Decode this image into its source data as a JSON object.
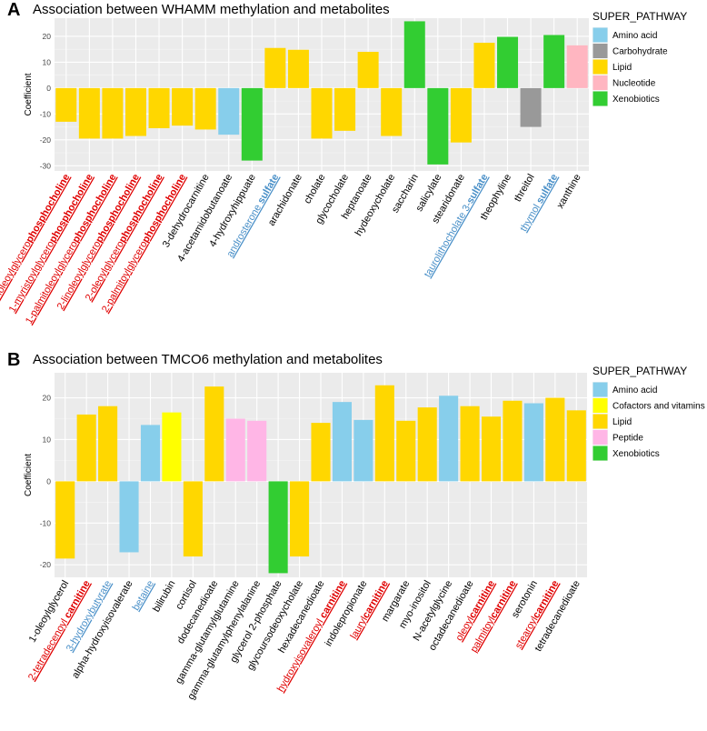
{
  "colors": {
    "Amino acid": "#87CEEB",
    "Carbohydrate": "#999999",
    "Lipid": "#FFD700",
    "Nucleotide": "#FFB6C1",
    "Xenobiotics": "#32CD32",
    "Cofactors and vitamins": "#FFFF00",
    "Peptide": "#FFB6E6",
    "panel_bg": "#EBEBEB",
    "grid": "#ffffff",
    "label_red": "#E00000",
    "label_blue": "#4A90C8",
    "label_black": "#000000"
  },
  "chart_data": [
    {
      "id": "A",
      "type": "bar",
      "panel_letter": "A",
      "title": "Association between WHAMM methylation and metabolites",
      "ylabel": "Coefficient",
      "xlabel": "",
      "ylim": [
        -32,
        27
      ],
      "yticks": [
        -30,
        -20,
        -10,
        0,
        10,
        20
      ],
      "legend_title": "SUPER_PATHWAY",
      "legend": [
        "Amino acid",
        "Carbohydrate",
        "Lipid",
        "Nucleotide",
        "Xenobiotics"
      ],
      "categories": [
        {
          "label": "1-linoleoylglycerophosphocholine",
          "parts": [
            [
              "1-linoleoylglycero",
              "normal"
            ],
            [
              "phosphocholine",
              "bold"
            ]
          ],
          "color": "red",
          "value": -13,
          "pathway": "Lipid"
        },
        {
          "label": "1-myristoylglycerophosphocholine",
          "parts": [
            [
              "1-myristoylglycero",
              "normal"
            ],
            [
              "phosphocholine",
              "bold"
            ]
          ],
          "color": "red",
          "value": -19.5,
          "pathway": "Lipid"
        },
        {
          "label": "1-palmitoleoylglycerophosphocholine",
          "parts": [
            [
              "1-palmitoleoylglycero",
              "normal"
            ],
            [
              "phosphocholine",
              "bold"
            ]
          ],
          "color": "red",
          "value": -19.5,
          "pathway": "Lipid"
        },
        {
          "label": "2-linoleoylglycerophosphocholine",
          "parts": [
            [
              "2-linoleoylglycero",
              "normal"
            ],
            [
              "phosphocholine",
              "bold"
            ]
          ],
          "color": "red",
          "value": -18.5,
          "pathway": "Lipid"
        },
        {
          "label": "2-oleoylglycerophosphocholine",
          "parts": [
            [
              "2-oleoylglycero",
              "normal"
            ],
            [
              "phosphocholine",
              "bold"
            ]
          ],
          "color": "red",
          "value": -15.5,
          "pathway": "Lipid"
        },
        {
          "label": "2-palmitoylglycerophosphocholine",
          "parts": [
            [
              "2-palmitoylglycero",
              "normal"
            ],
            [
              "phosphocholine",
              "bold"
            ]
          ],
          "color": "red",
          "value": -14.5,
          "pathway": "Lipid"
        },
        {
          "label": "3-dehydrocarnitine",
          "parts": [
            [
              "3-dehydrocarnitine",
              "normal"
            ]
          ],
          "color": "black",
          "value": -16,
          "pathway": "Lipid"
        },
        {
          "label": "4-acetamidobutanoate",
          "parts": [
            [
              "4-acetamidobutanoate",
              "normal"
            ]
          ],
          "color": "black",
          "value": -18,
          "pathway": "Amino acid"
        },
        {
          "label": "4-hydroxyhippuate",
          "parts": [
            [
              "4-hydroxyhippuate",
              "normal"
            ]
          ],
          "color": "black",
          "value": -28,
          "pathway": "Xenobiotics"
        },
        {
          "label": "androsterone sulfate",
          "parts": [
            [
              "androsterone ",
              "normal"
            ],
            [
              "sulfate",
              "bold"
            ]
          ],
          "color": "blue",
          "value": 15.5,
          "pathway": "Lipid"
        },
        {
          "label": "arachidonate",
          "parts": [
            [
              "arachidonate",
              "normal"
            ]
          ],
          "color": "black",
          "value": 14.8,
          "pathway": "Lipid"
        },
        {
          "label": "cholate",
          "parts": [
            [
              "cholate",
              "normal"
            ]
          ],
          "color": "black",
          "value": -19.5,
          "pathway": "Lipid"
        },
        {
          "label": "glycocholate",
          "parts": [
            [
              "glycocholate",
              "normal"
            ]
          ],
          "color": "black",
          "value": -16.5,
          "pathway": "Lipid"
        },
        {
          "label": "heptanoate",
          "parts": [
            [
              "heptanoate",
              "normal"
            ]
          ],
          "color": "black",
          "value": 14,
          "pathway": "Lipid"
        },
        {
          "label": "hydeoxycholate",
          "parts": [
            [
              "hydeoxycholate",
              "normal"
            ]
          ],
          "color": "black",
          "value": -18.5,
          "pathway": "Lipid"
        },
        {
          "label": "saccharin",
          "parts": [
            [
              "saccharin",
              "normal"
            ]
          ],
          "color": "black",
          "value": 25.8,
          "pathway": "Xenobiotics"
        },
        {
          "label": "salicylate",
          "parts": [
            [
              "salicylate",
              "normal"
            ]
          ],
          "color": "black",
          "value": -29.5,
          "pathway": "Xenobiotics"
        },
        {
          "label": "stearidonate",
          "parts": [
            [
              "stearidonate",
              "normal"
            ]
          ],
          "color": "black",
          "value": -21,
          "pathway": "Lipid"
        },
        {
          "label": "taurolithocholate 3-sulfate",
          "parts": [
            [
              "taurolithocholate 3-",
              "normal"
            ],
            [
              "sulfate",
              "bold"
            ]
          ],
          "color": "blue",
          "value": 17.5,
          "pathway": "Lipid"
        },
        {
          "label": "theophyline",
          "parts": [
            [
              "theophyline",
              "normal"
            ]
          ],
          "color": "black",
          "value": 19.8,
          "pathway": "Xenobiotics"
        },
        {
          "label": "threitol",
          "parts": [
            [
              "threitol",
              "normal"
            ]
          ],
          "color": "black",
          "value": -15,
          "pathway": "Carbohydrate"
        },
        {
          "label": "thymol sulfate",
          "parts": [
            [
              "thymol ",
              "normal"
            ],
            [
              "sulfate",
              "bold"
            ]
          ],
          "color": "blue",
          "value": 20.5,
          "pathway": "Xenobiotics"
        },
        {
          "label": "xanthine",
          "parts": [
            [
              "xanthine",
              "normal"
            ]
          ],
          "color": "black",
          "value": 16.5,
          "pathway": "Nucleotide"
        }
      ]
    },
    {
      "id": "B",
      "type": "bar",
      "panel_letter": "B",
      "title": "Association between TMCO6 methylation and metabolites",
      "ylabel": "Coefficient",
      "xlabel": "",
      "ylim": [
        -23,
        26
      ],
      "yticks": [
        -20,
        -10,
        0,
        10,
        20
      ],
      "legend_title": "SUPER_PATHWAY",
      "legend": [
        "Amino acid",
        "Cofactors and vitamins",
        "Lipid",
        "Peptide",
        "Xenobiotics"
      ],
      "categories": [
        {
          "label": "1-oleoylglycerol",
          "parts": [
            [
              "1-oleoylglycerol",
              "normal"
            ]
          ],
          "color": "black",
          "value": -18.5,
          "pathway": "Lipid"
        },
        {
          "label": "2-tetradecenoyl carnitine",
          "parts": [
            [
              "2-tetradecenoyl ",
              "normal"
            ],
            [
              "carnitine",
              "bold"
            ]
          ],
          "color": "red",
          "value": 16,
          "pathway": "Lipid"
        },
        {
          "label": "3-hydroxybutyrate",
          "parts": [
            [
              "3-hydroxybutyrate",
              "normal"
            ]
          ],
          "color": "blue",
          "value": 18,
          "pathway": "Lipid"
        },
        {
          "label": "alpha-hydroxyisovalerate",
          "parts": [
            [
              "alpha-hydroxyisovalerate",
              "normal"
            ]
          ],
          "color": "black",
          "value": -17,
          "pathway": "Amino acid"
        },
        {
          "label": "betaine",
          "parts": [
            [
              "betaine",
              "normal"
            ]
          ],
          "color": "blue",
          "value": 13.5,
          "pathway": "Amino acid"
        },
        {
          "label": "bilirubin",
          "parts": [
            [
              "bilirubin",
              "normal"
            ]
          ],
          "color": "black",
          "value": 16.5,
          "pathway": "Cofactors and vitamins"
        },
        {
          "label": "cortisol",
          "parts": [
            [
              "cortisol",
              "normal"
            ]
          ],
          "color": "black",
          "value": -18,
          "pathway": "Lipid"
        },
        {
          "label": "dodecanedioate",
          "parts": [
            [
              "dodecanedioate",
              "normal"
            ]
          ],
          "color": "black",
          "value": 22.7,
          "pathway": "Lipid"
        },
        {
          "label": "gamma-glutamylglutamine",
          "parts": [
            [
              "gamma-glutamylglutamine",
              "normal"
            ]
          ],
          "color": "black",
          "value": 15,
          "pathway": "Peptide"
        },
        {
          "label": "gamma-glutamylphenylalanine",
          "parts": [
            [
              "gamma-glutamylphenylalanine",
              "normal"
            ]
          ],
          "color": "black",
          "value": 14.5,
          "pathway": "Peptide"
        },
        {
          "label": "glycerol 2-phosphate",
          "parts": [
            [
              "glycerol 2-phosphate",
              "normal"
            ]
          ],
          "color": "black",
          "value": -22,
          "pathway": "Xenobiotics"
        },
        {
          "label": "glycoursodeoxycholate",
          "parts": [
            [
              "glycoursodeoxycholate",
              "normal"
            ]
          ],
          "color": "black",
          "value": -18,
          "pathway": "Lipid"
        },
        {
          "label": "hexadecanedioate",
          "parts": [
            [
              "hexadecanedioate",
              "normal"
            ]
          ],
          "color": "black",
          "value": 14,
          "pathway": "Lipid"
        },
        {
          "label": "hydroxyisovaleroyl carnitine",
          "parts": [
            [
              "hydroxyisovaleroyl ",
              "normal"
            ],
            [
              "carnitine",
              "bold"
            ]
          ],
          "color": "red",
          "value": 19,
          "pathway": "Amino acid"
        },
        {
          "label": "indolepropionate",
          "parts": [
            [
              "indolepropionate",
              "normal"
            ]
          ],
          "color": "black",
          "value": 14.7,
          "pathway": "Amino acid"
        },
        {
          "label": "laurylcarnitine",
          "parts": [
            [
              "lauryl",
              "normal"
            ],
            [
              "carnitine",
              "bold"
            ]
          ],
          "color": "red",
          "value": 23,
          "pathway": "Lipid"
        },
        {
          "label": "margarate",
          "parts": [
            [
              "margarate",
              "normal"
            ]
          ],
          "color": "black",
          "value": 14.5,
          "pathway": "Lipid"
        },
        {
          "label": "myo-inositol",
          "parts": [
            [
              "myo-inositol",
              "normal"
            ]
          ],
          "color": "black",
          "value": 17.7,
          "pathway": "Lipid"
        },
        {
          "label": "N-acetylglycine",
          "parts": [
            [
              "N-acetylglycine",
              "normal"
            ]
          ],
          "color": "black",
          "value": 20.5,
          "pathway": "Amino acid"
        },
        {
          "label": "octadecanedioate",
          "parts": [
            [
              "octadecanedioate",
              "normal"
            ]
          ],
          "color": "black",
          "value": 18,
          "pathway": "Lipid"
        },
        {
          "label": "oleoylcarnitine",
          "parts": [
            [
              "oleoyl",
              "normal"
            ],
            [
              "carnitine",
              "bold"
            ]
          ],
          "color": "red",
          "value": 15.5,
          "pathway": "Lipid"
        },
        {
          "label": "palmitoylcarnitine",
          "parts": [
            [
              "palmitoyl",
              "normal"
            ],
            [
              "carnitine",
              "bold"
            ]
          ],
          "color": "red",
          "value": 19.3,
          "pathway": "Lipid"
        },
        {
          "label": "serotonin",
          "parts": [
            [
              "serotonin",
              "normal"
            ]
          ],
          "color": "black",
          "value": 18.7,
          "pathway": "Amino acid"
        },
        {
          "label": "stearoylcarnitine",
          "parts": [
            [
              "stearoyl",
              "normal"
            ],
            [
              "carnitine",
              "bold"
            ]
          ],
          "color": "red",
          "value": 20,
          "pathway": "Lipid"
        },
        {
          "label": "tetradecanedioate",
          "parts": [
            [
              "tetradecanedioate",
              "normal"
            ]
          ],
          "color": "black",
          "value": 17,
          "pathway": "Lipid"
        }
      ]
    }
  ]
}
